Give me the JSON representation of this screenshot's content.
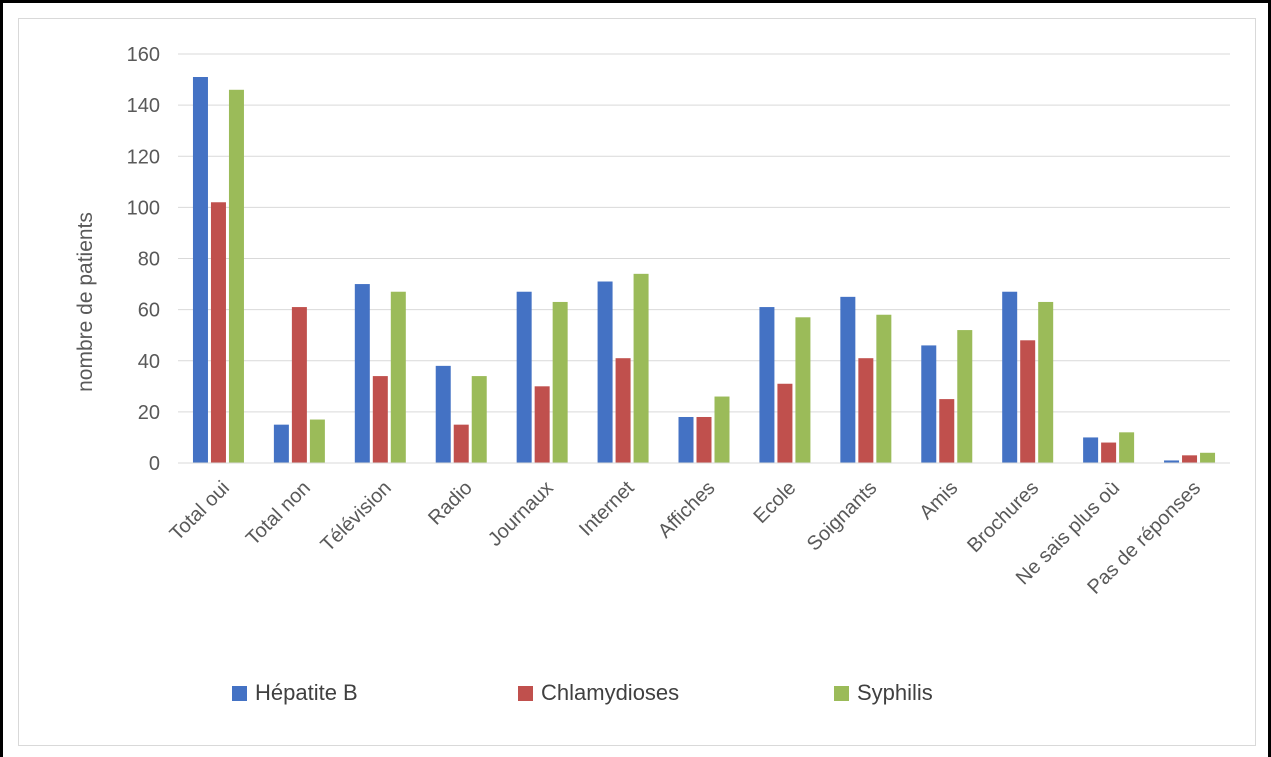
{
  "chart_data": {
    "type": "bar",
    "title": "",
    "xlabel": "",
    "ylabel": "nombre de patients",
    "ylim": [
      0,
      160
    ],
    "yticks": [
      0,
      20,
      40,
      60,
      80,
      100,
      120,
      140,
      160
    ],
    "grid": true,
    "legend_position": "bottom",
    "categories": [
      "Total oui",
      "Total non",
      "Télévision",
      "Radio",
      "Journaux",
      "Internet",
      "Affiches",
      "Ecole",
      "Soignants",
      "Amis",
      "Brochures",
      "Ne sais plus où",
      "Pas de réponses"
    ],
    "series": [
      {
        "name": "Hépatite B",
        "color": "#4472c4",
        "values": [
          151,
          15,
          70,
          38,
          67,
          71,
          18,
          61,
          65,
          46,
          67,
          10,
          1
        ]
      },
      {
        "name": "Chlamydioses",
        "color": "#c0504d",
        "values": [
          102,
          61,
          34,
          15,
          30,
          41,
          18,
          31,
          41,
          25,
          48,
          8,
          3
        ]
      },
      {
        "name": "Syphilis",
        "color": "#9bbb59",
        "values": [
          146,
          17,
          67,
          34,
          63,
          74,
          26,
          57,
          58,
          52,
          63,
          12,
          4
        ]
      }
    ]
  }
}
